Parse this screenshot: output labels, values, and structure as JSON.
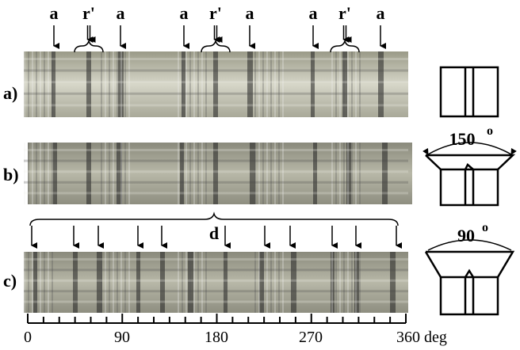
{
  "top_markers": [
    "a",
    "r'",
    "a",
    "a",
    "r'",
    "a",
    "a",
    "r'",
    "a"
  ],
  "panel_labels": [
    "a)",
    "b)",
    "c)"
  ],
  "angles": [
    {
      "value": "150",
      "unit": "o"
    },
    {
      "value": "90",
      "unit": "o"
    }
  ],
  "group_label": "d",
  "axis": {
    "labels": [
      "0",
      "90",
      "180",
      "270",
      "360 deg"
    ]
  }
}
